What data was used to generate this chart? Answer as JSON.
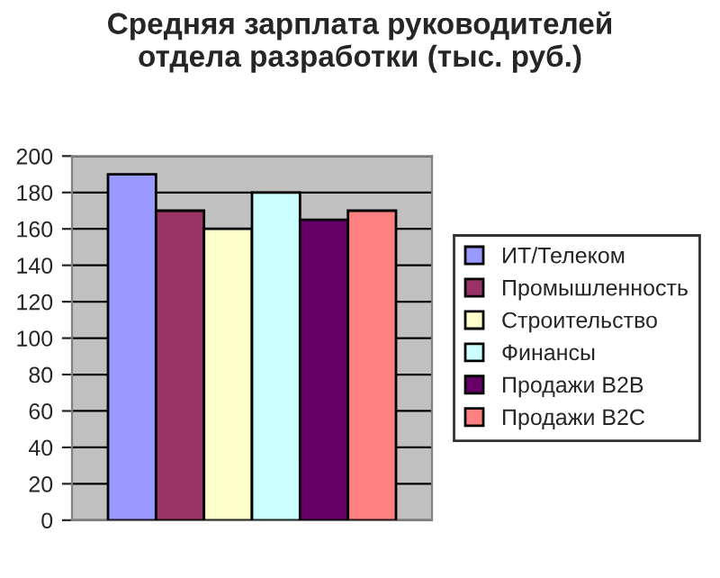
{
  "chart_data": {
    "type": "bar",
    "title": "Средняя зарплата руководителей\nотдела разработки (тыс. руб.)",
    "categories": [
      null
    ],
    "series": [
      {
        "name": "ИТ/Телеком",
        "color": "#9999ff",
        "values": [
          190
        ]
      },
      {
        "name": "Промышленность",
        "color": "#993366",
        "values": [
          170
        ]
      },
      {
        "name": "Строительство",
        "color": "#ffffcc",
        "values": [
          160
        ]
      },
      {
        "name": "Финансы",
        "color": "#ccffff",
        "values": [
          180
        ]
      },
      {
        "name": "Продажи B2B",
        "color": "#660066",
        "values": [
          165
        ]
      },
      {
        "name": "Продажи B2C",
        "color": "#ff8080",
        "values": [
          170
        ]
      }
    ],
    "ylim": [
      0,
      200
    ],
    "yticks": [
      0,
      20,
      40,
      60,
      80,
      100,
      120,
      140,
      160,
      180,
      200
    ],
    "grid": "y",
    "legend": "right"
  }
}
